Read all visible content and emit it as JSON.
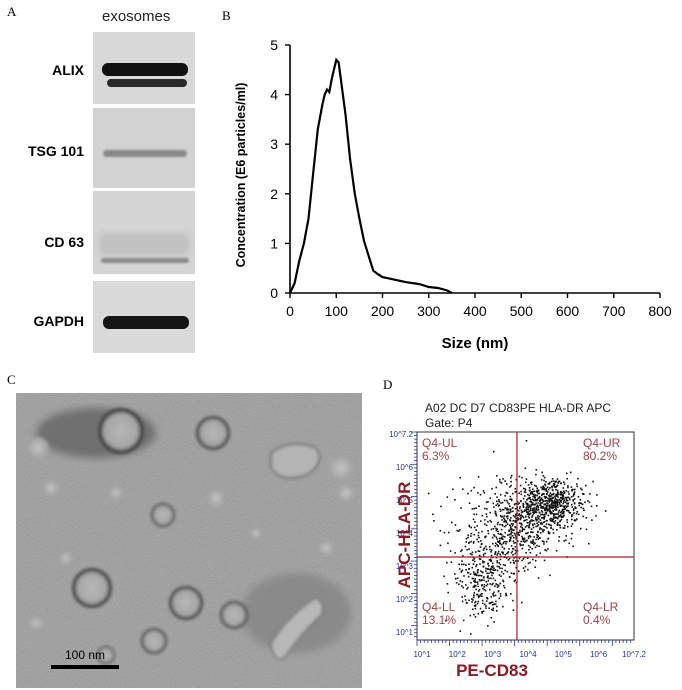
{
  "panels": {
    "a": "A",
    "b": "B",
    "c": "C",
    "d": "D"
  },
  "panel_a": {
    "column_header": "exosomes",
    "rows": [
      "ALIX",
      "TSG 101",
      "CD 63",
      "GAPDH"
    ]
  },
  "panel_c": {
    "scale_bar_label": "100 nm"
  },
  "panel_d": {
    "title": "A02 DC D7 CD83PE HLA-DR APC",
    "gate": "Gate: P4",
    "quadrants": [
      {
        "name": "Q4-UL",
        "percent": "6.3%"
      },
      {
        "name": "Q4-UR",
        "percent": "80.2%"
      },
      {
        "name": "Q4-LL",
        "percent": "13.1%"
      },
      {
        "name": "Q4-LR",
        "percent": "0.4%"
      }
    ],
    "x_label": "PE-CD83",
    "y_label": "APC-HLA-DR",
    "x_ticks": [
      "10^1",
      "10^2",
      "10^3",
      "10^4",
      "10^5",
      "10^6",
      "10^7.2"
    ],
    "y_ticks": [
      "10^1",
      "10^2",
      "10^3",
      "10^4",
      "10^5",
      "10^6",
      "10^7.2"
    ]
  },
  "chart_data": {
    "type": "line",
    "title": "",
    "xlabel": "Size (nm)",
    "ylabel": "Concentration (E6 particles/ml)",
    "xlim": [
      0,
      800
    ],
    "ylim": [
      0,
      5
    ],
    "x_ticks": [
      "0",
      "100",
      "200",
      "300",
      "400",
      "500",
      "600",
      "700",
      "800"
    ],
    "y_ticks": [
      "0",
      "1",
      "2",
      "3",
      "4",
      "5"
    ],
    "grid": false,
    "series": [
      {
        "x": [
          0,
          10,
          20,
          30,
          40,
          50,
          60,
          70,
          75,
          80,
          85,
          90,
          95,
          100,
          105,
          110,
          120,
          130,
          140,
          150,
          160,
          170,
          180,
          190,
          200,
          220,
          250,
          280,
          300,
          320,
          340,
          350
        ],
        "y": [
          0,
          0.2,
          0.65,
          1.0,
          1.5,
          2.4,
          3.3,
          3.8,
          4.0,
          4.1,
          4.05,
          4.3,
          4.5,
          4.7,
          4.65,
          4.3,
          3.6,
          2.7,
          2.0,
          1.5,
          1.05,
          0.75,
          0.45,
          0.38,
          0.32,
          0.28,
          0.22,
          0.18,
          0.12,
          0.1,
          0.05,
          0
        ]
      }
    ]
  }
}
